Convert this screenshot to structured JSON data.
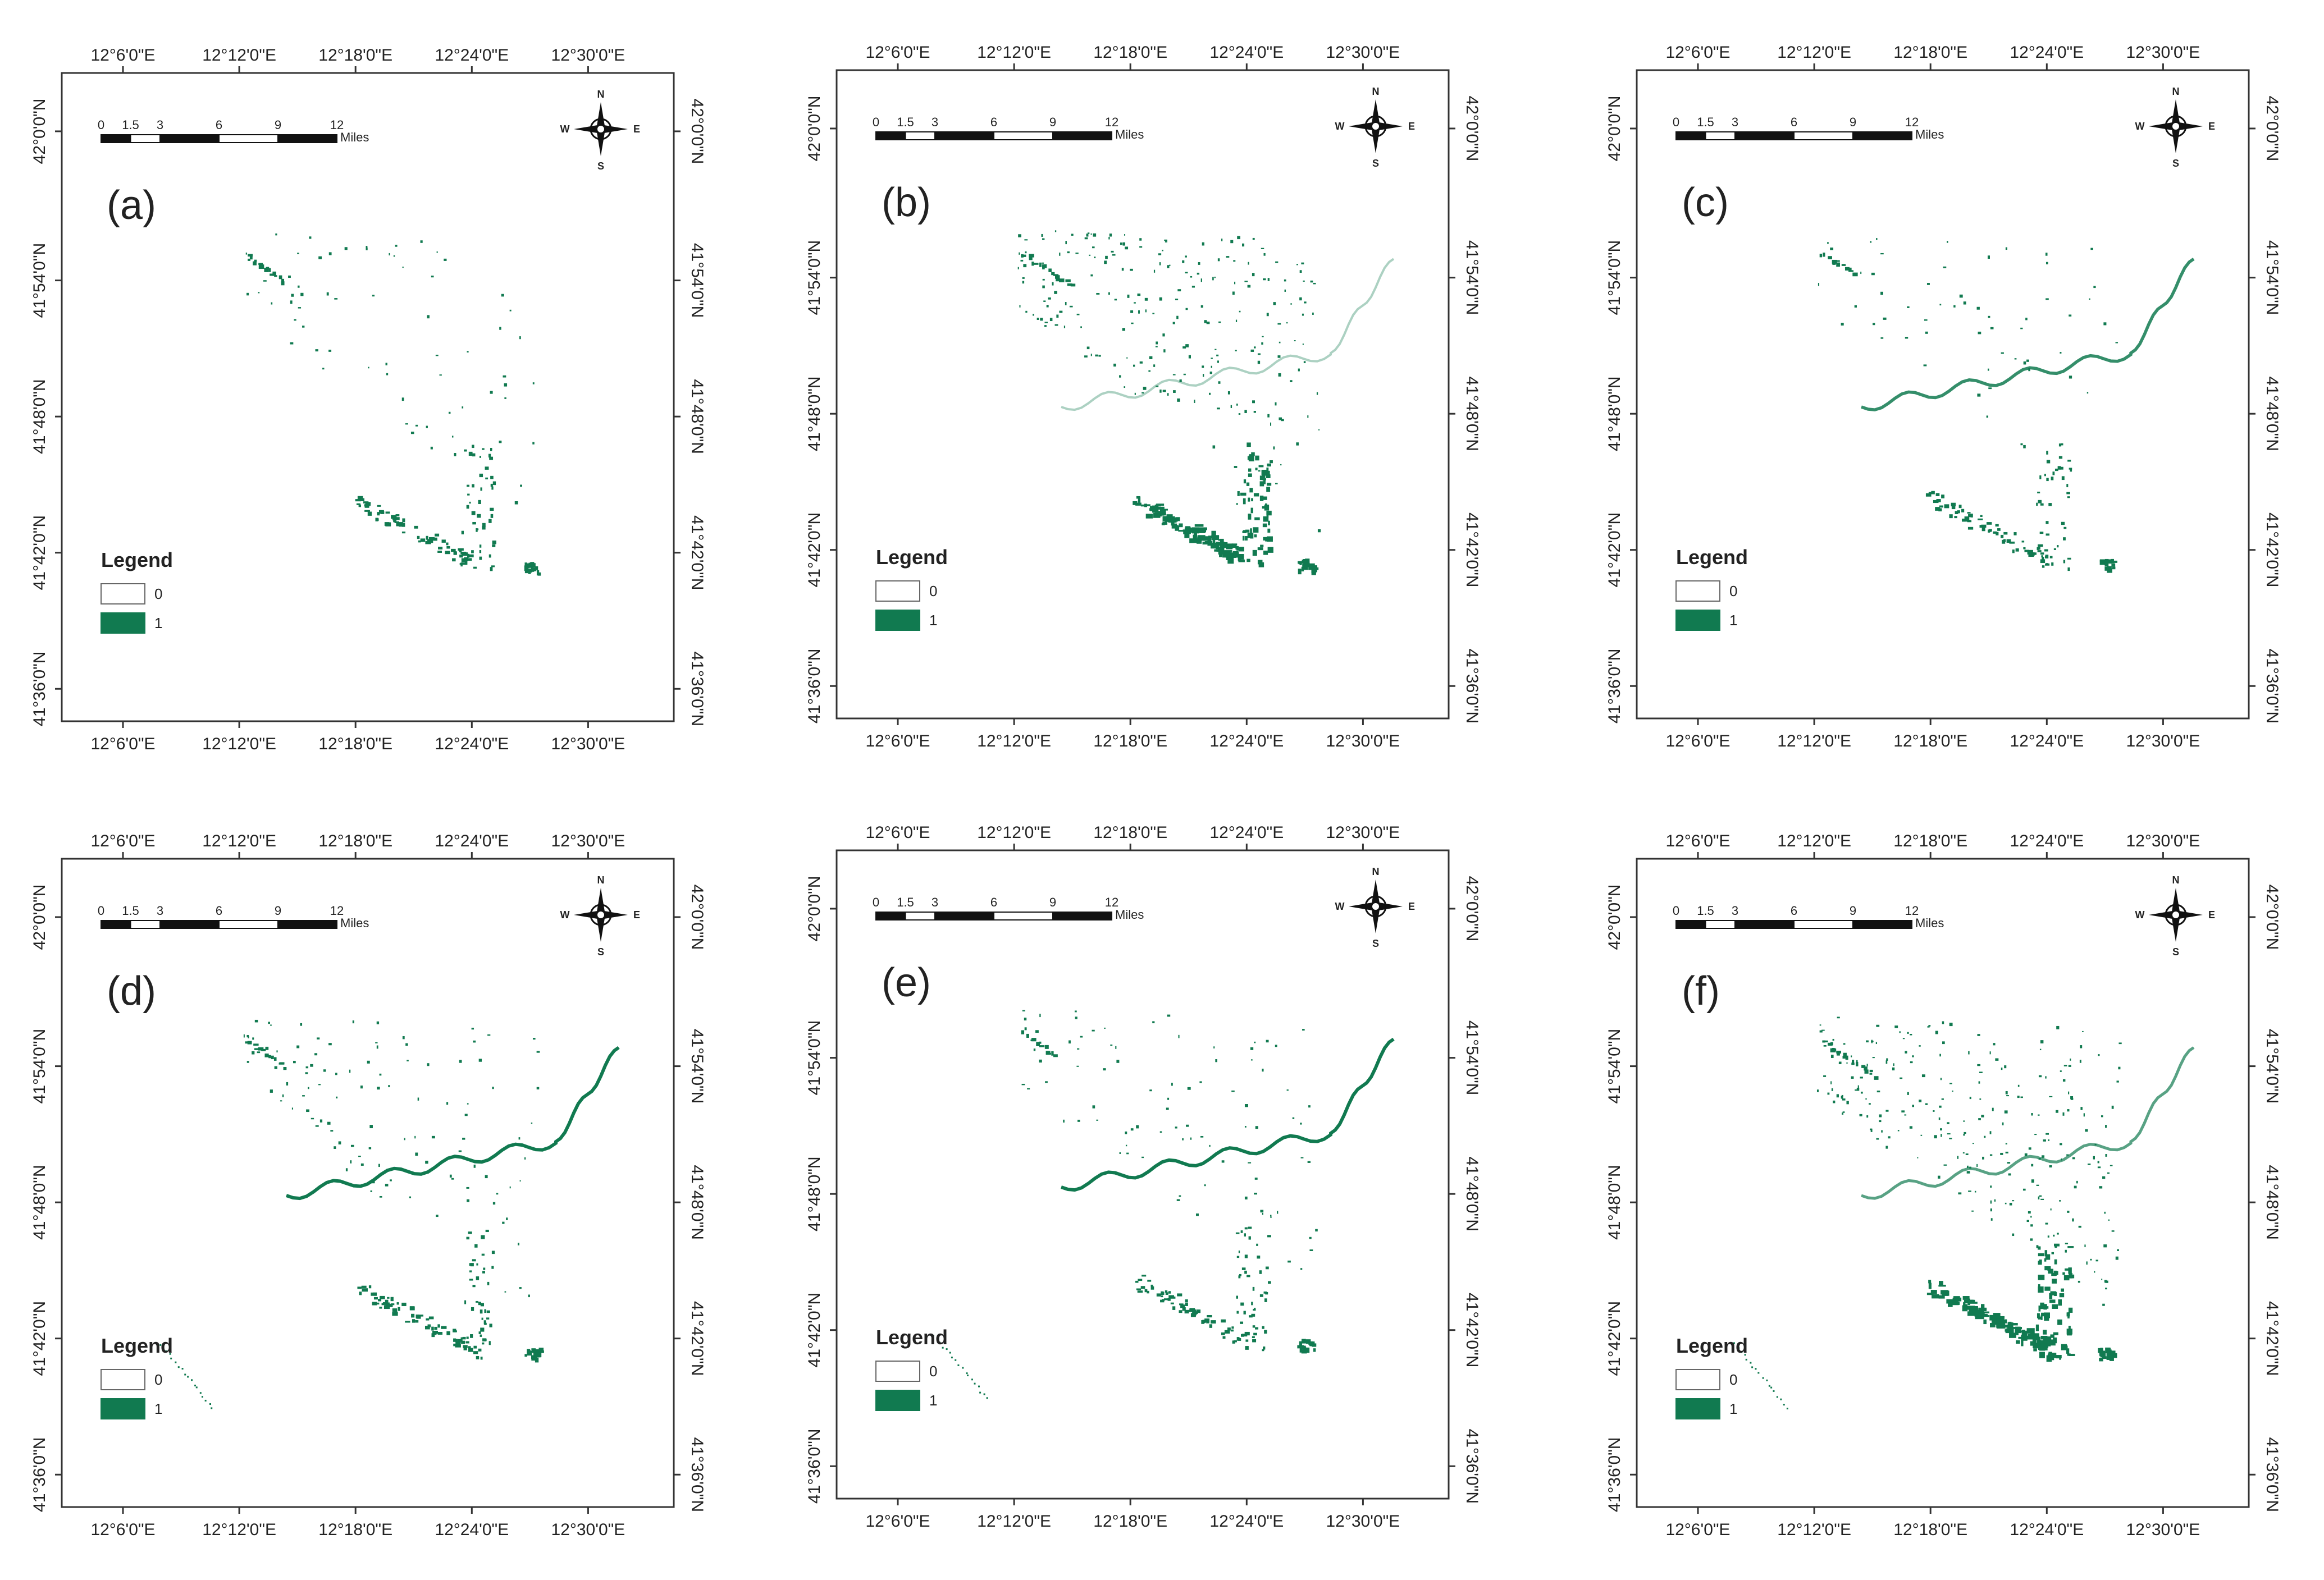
{
  "figure": {
    "scale_bar": {
      "ticks": [
        "0",
        "1.5",
        "3",
        "6",
        "9",
        "12"
      ],
      "unit": "Miles"
    },
    "north_arrow": {
      "n": "N",
      "s": "S",
      "e": "E",
      "w": "W"
    },
    "legend": {
      "title": "Legend",
      "items": [
        {
          "label": "0",
          "color": "#ffffff"
        },
        {
          "label": "1",
          "color": "#117a50"
        }
      ]
    },
    "lon_ticks": [
      "12°6'0\"E",
      "12°12'0\"E",
      "12°18'0\"E",
      "12°24'0\"E",
      "12°30'0\"E"
    ],
    "lat_ticks": [
      "42°0'0\"N",
      "41°54'0\"N",
      "41°48'0\"N",
      "41°42'0\"N",
      "41°36'0\"N"
    ],
    "accent_color": "#117a50",
    "panels": [
      {
        "label": "(a)",
        "id": "a"
      },
      {
        "label": "(b)",
        "id": "b"
      },
      {
        "label": "(c)",
        "id": "c"
      },
      {
        "label": "(d)",
        "id": "d"
      },
      {
        "label": "(e)",
        "id": "e"
      },
      {
        "label": "(f)",
        "id": "f"
      }
    ]
  }
}
